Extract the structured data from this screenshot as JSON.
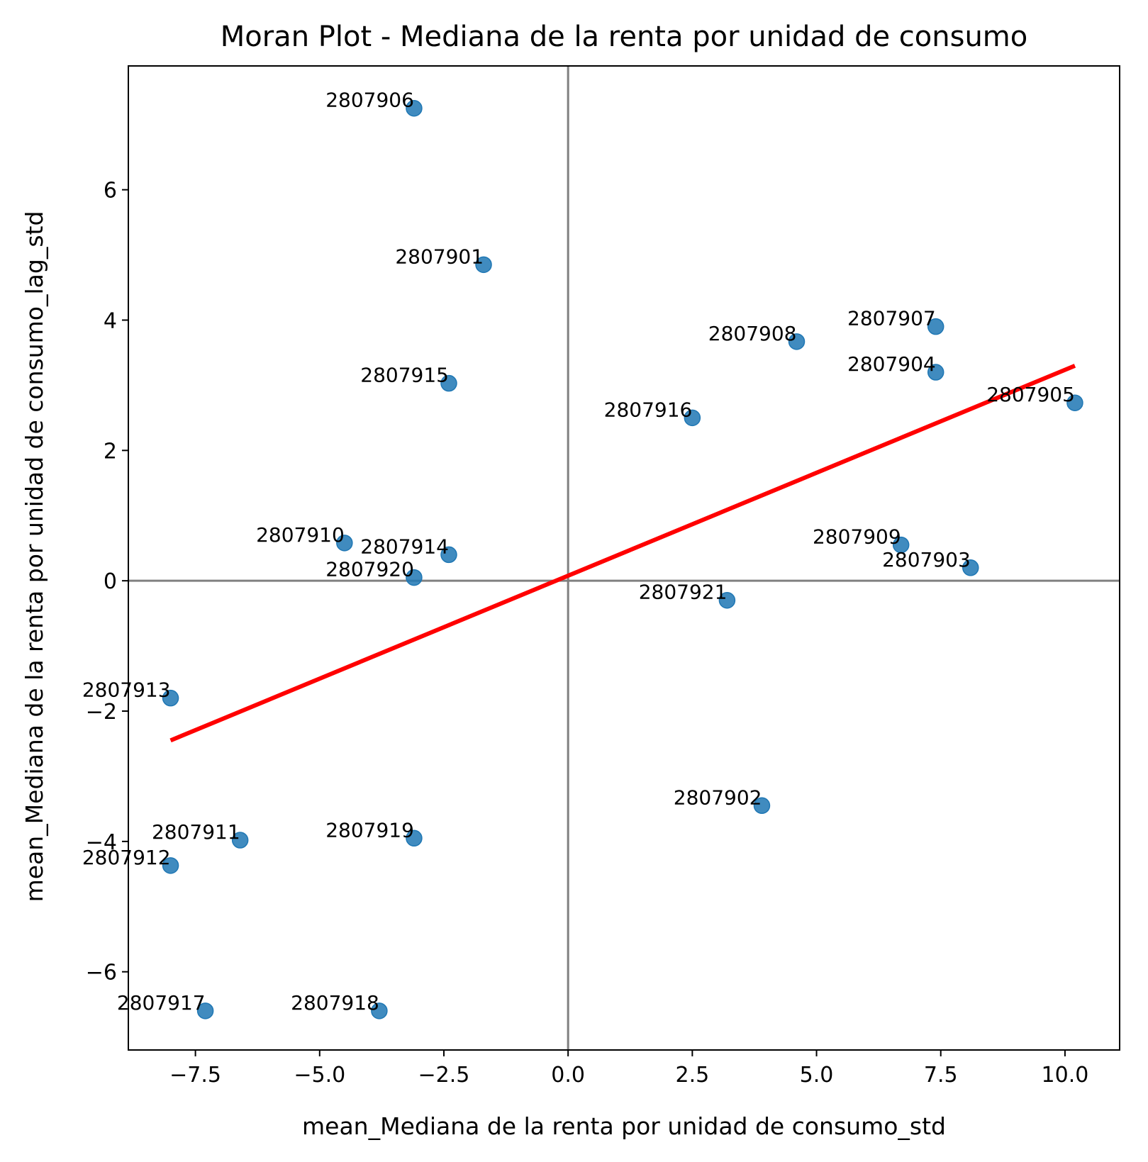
{
  "chart_data": {
    "type": "scatter",
    "title": "Moran Plot - Mediana de la renta por unidad de consumo",
    "xlabel": "mean_Mediana de la renta por unidad de consumo_std",
    "ylabel": "mean_Mediana de la renta por unidad de consumo_lag_std",
    "xlim": [
      -8.85,
      11.1
    ],
    "ylim": [
      -7.2,
      7.9
    ],
    "grid": false,
    "x_ticks": [
      {
        "value": -7.5,
        "label": "−7.5"
      },
      {
        "value": -5.0,
        "label": "−5.0"
      },
      {
        "value": -2.5,
        "label": "−2.5"
      },
      {
        "value": 0.0,
        "label": "0.0"
      },
      {
        "value": 2.5,
        "label": "2.5"
      },
      {
        "value": 5.0,
        "label": "5.0"
      },
      {
        "value": 7.5,
        "label": "7.5"
      },
      {
        "value": 10.0,
        "label": "10.0"
      }
    ],
    "y_ticks": [
      {
        "value": -6,
        "label": "−6"
      },
      {
        "value": -4,
        "label": "−4"
      },
      {
        "value": -2,
        "label": "−2"
      },
      {
        "value": 0,
        "label": "0"
      },
      {
        "value": 2,
        "label": "2"
      },
      {
        "value": 4,
        "label": "4"
      },
      {
        "value": 6,
        "label": "6"
      }
    ],
    "reference_lines": {
      "x": 0,
      "y": 0,
      "color": "#808080"
    },
    "regression_line": {
      "x": [
        -8.0,
        10.2
      ],
      "y": [
        -2.45,
        3.3
      ],
      "color": "#ff0000"
    },
    "point_color": "#1f77b4",
    "points": [
      {
        "label": "2807906",
        "x": -3.1,
        "y": 7.25
      },
      {
        "label": "2807901",
        "x": -1.7,
        "y": 4.85
      },
      {
        "label": "2807915",
        "x": -2.4,
        "y": 3.03
      },
      {
        "label": "2807910",
        "x": -4.5,
        "y": 0.58
      },
      {
        "label": "2807914",
        "x": -2.4,
        "y": 0.4
      },
      {
        "label": "2807920",
        "x": -3.1,
        "y": 0.05
      },
      {
        "label": "2807913",
        "x": -8.0,
        "y": -1.8
      },
      {
        "label": "2807911",
        "x": -6.6,
        "y": -3.98
      },
      {
        "label": "2807912",
        "x": -8.0,
        "y": -4.37
      },
      {
        "label": "2807919",
        "x": -3.1,
        "y": -3.95
      },
      {
        "label": "2807917",
        "x": -7.3,
        "y": -6.6
      },
      {
        "label": "2807918",
        "x": -3.8,
        "y": -6.6
      },
      {
        "label": "2807916",
        "x": 2.5,
        "y": 2.5
      },
      {
        "label": "2807908",
        "x": 4.6,
        "y": 3.67
      },
      {
        "label": "2807907",
        "x": 7.4,
        "y": 3.9
      },
      {
        "label": "2807904",
        "x": 7.4,
        "y": 3.2
      },
      {
        "label": "2807905",
        "x": 10.2,
        "y": 2.73
      },
      {
        "label": "2807909",
        "x": 6.7,
        "y": 0.55
      },
      {
        "label": "2807903",
        "x": 8.1,
        "y": 0.2
      },
      {
        "label": "2807921",
        "x": 3.2,
        "y": -0.3
      },
      {
        "label": "2807902",
        "x": 3.9,
        "y": -3.45
      }
    ]
  }
}
